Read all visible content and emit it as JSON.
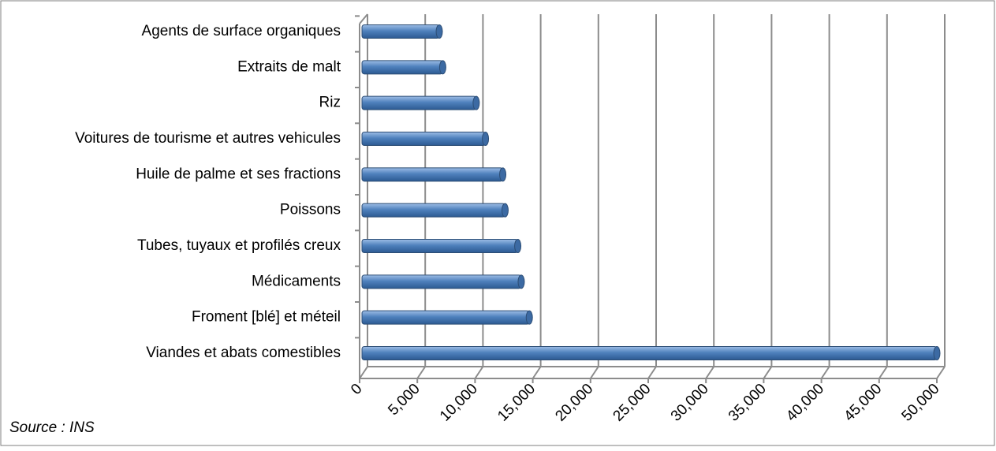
{
  "chart_data": {
    "type": "bar",
    "orientation": "horizontal",
    "categories": [
      "Agents de surface organiques",
      "Extraits de malt",
      "Riz",
      "Voitures de tourisme et autres vehicules",
      "Huile de palme et ses fractions",
      "Poissons",
      "Tubes, tuyaux et profilés creux",
      "Médicaments",
      "Froment [blé] et méteil",
      "Viandes et abats comestibles"
    ],
    "values": [
      6900,
      7200,
      10100,
      10900,
      12400,
      12600,
      13700,
      14000,
      14700,
      50000
    ],
    "color": "#4f81bd",
    "xlim": [
      0,
      50000
    ],
    "xticks": [
      0,
      {
        "value": 5000,
        "label": "5,000"
      },
      {
        "value": 10000,
        "label": "10,000"
      },
      {
        "value": 15000,
        "label": "15,000"
      },
      {
        "value": 20000,
        "label": "20,000"
      },
      {
        "value": 25000,
        "label": "25,000"
      },
      {
        "value": 30000,
        "label": "30,000"
      },
      {
        "value": 35000,
        "label": "35,000"
      },
      {
        "value": 40000,
        "label": "40,000"
      },
      {
        "value": 45000,
        "label": "45,000"
      },
      {
        "value": 50000,
        "label": "50,000"
      }
    ],
    "grid": true,
    "source": "Source : INS"
  }
}
